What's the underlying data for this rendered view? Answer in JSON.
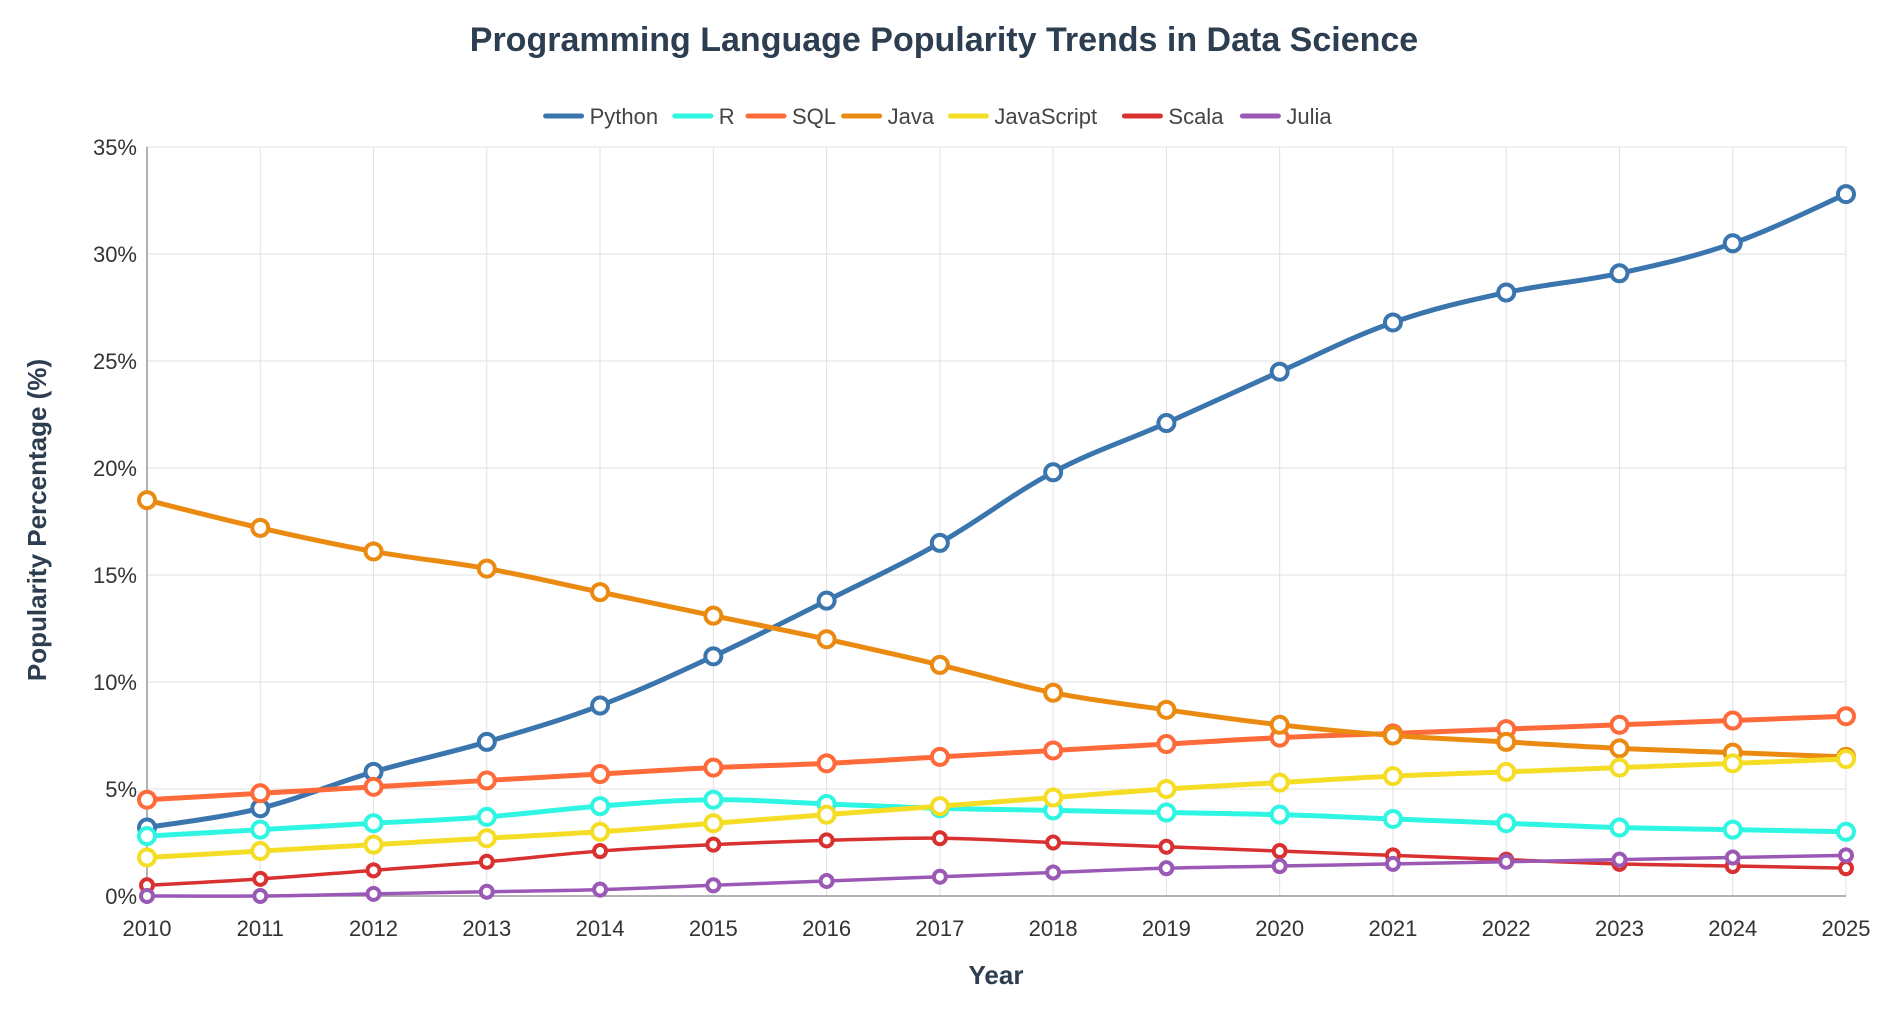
{
  "chart_data": {
    "type": "line",
    "title": "Programming Language Popularity Trends in Data Science",
    "xlabel": "Year",
    "ylabel": "Popularity Percentage (%)",
    "x": [
      2010,
      2011,
      2012,
      2013,
      2014,
      2015,
      2016,
      2017,
      2018,
      2019,
      2020,
      2021,
      2022,
      2023,
      2024,
      2025
    ],
    "x_tick_labels": [
      "2010",
      "2011",
      "2012",
      "2013",
      "2014",
      "2015",
      "2016",
      "2017",
      "2018",
      "2019",
      "2020",
      "2021",
      "2022",
      "2023",
      "2024",
      "2025"
    ],
    "ylim": [
      0,
      35
    ],
    "y_ticks": [
      0,
      5,
      10,
      15,
      20,
      25,
      30,
      35
    ],
    "y_tick_labels": [
      "0%",
      "5%",
      "10%",
      "15%",
      "20%",
      "25%",
      "30%",
      "35%"
    ],
    "grid": true,
    "legend_position": "top-center",
    "series": [
      {
        "name": "Python",
        "color": "#3a75ad",
        "values": [
          3.2,
          4.1,
          5.8,
          7.2,
          8.9,
          11.2,
          13.8,
          16.5,
          19.8,
          22.1,
          24.5,
          26.8,
          28.2,
          29.1,
          30.5,
          32.8
        ]
      },
      {
        "name": "R",
        "color": "#2ff5e3",
        "values": [
          2.8,
          3.1,
          3.4,
          3.7,
          4.2,
          4.5,
          4.3,
          4.1,
          4.0,
          3.9,
          3.8,
          3.6,
          3.4,
          3.2,
          3.1,
          3.0
        ]
      },
      {
        "name": "SQL",
        "color": "#ff6a3a",
        "values": [
          4.5,
          4.8,
          5.1,
          5.4,
          5.7,
          6.0,
          6.2,
          6.5,
          6.8,
          7.1,
          7.4,
          7.6,
          7.8,
          8.0,
          8.2,
          8.4
        ]
      },
      {
        "name": "Java",
        "color": "#eb8a10",
        "values": [
          18.5,
          17.2,
          16.1,
          15.3,
          14.2,
          13.1,
          12.0,
          10.8,
          9.5,
          8.7,
          8.0,
          7.5,
          7.2,
          6.9,
          6.7,
          6.5
        ]
      },
      {
        "name": "JavaScript",
        "color": "#f5dd25",
        "values": [
          1.8,
          2.1,
          2.4,
          2.7,
          3.0,
          3.4,
          3.8,
          4.2,
          4.6,
          5.0,
          5.3,
          5.6,
          5.8,
          6.0,
          6.2,
          6.4
        ]
      },
      {
        "name": "Scala",
        "color": "#d93030",
        "values": [
          0.5,
          0.8,
          1.2,
          1.6,
          2.1,
          2.4,
          2.6,
          2.7,
          2.5,
          2.3,
          2.1,
          1.9,
          1.7,
          1.5,
          1.4,
          1.3
        ]
      },
      {
        "name": "Julia",
        "color": "#9b59b6",
        "values": [
          0.0,
          0.0,
          0.1,
          0.2,
          0.3,
          0.5,
          0.7,
          0.9,
          1.1,
          1.3,
          1.4,
          1.5,
          1.6,
          1.7,
          1.8,
          1.9
        ]
      }
    ]
  }
}
